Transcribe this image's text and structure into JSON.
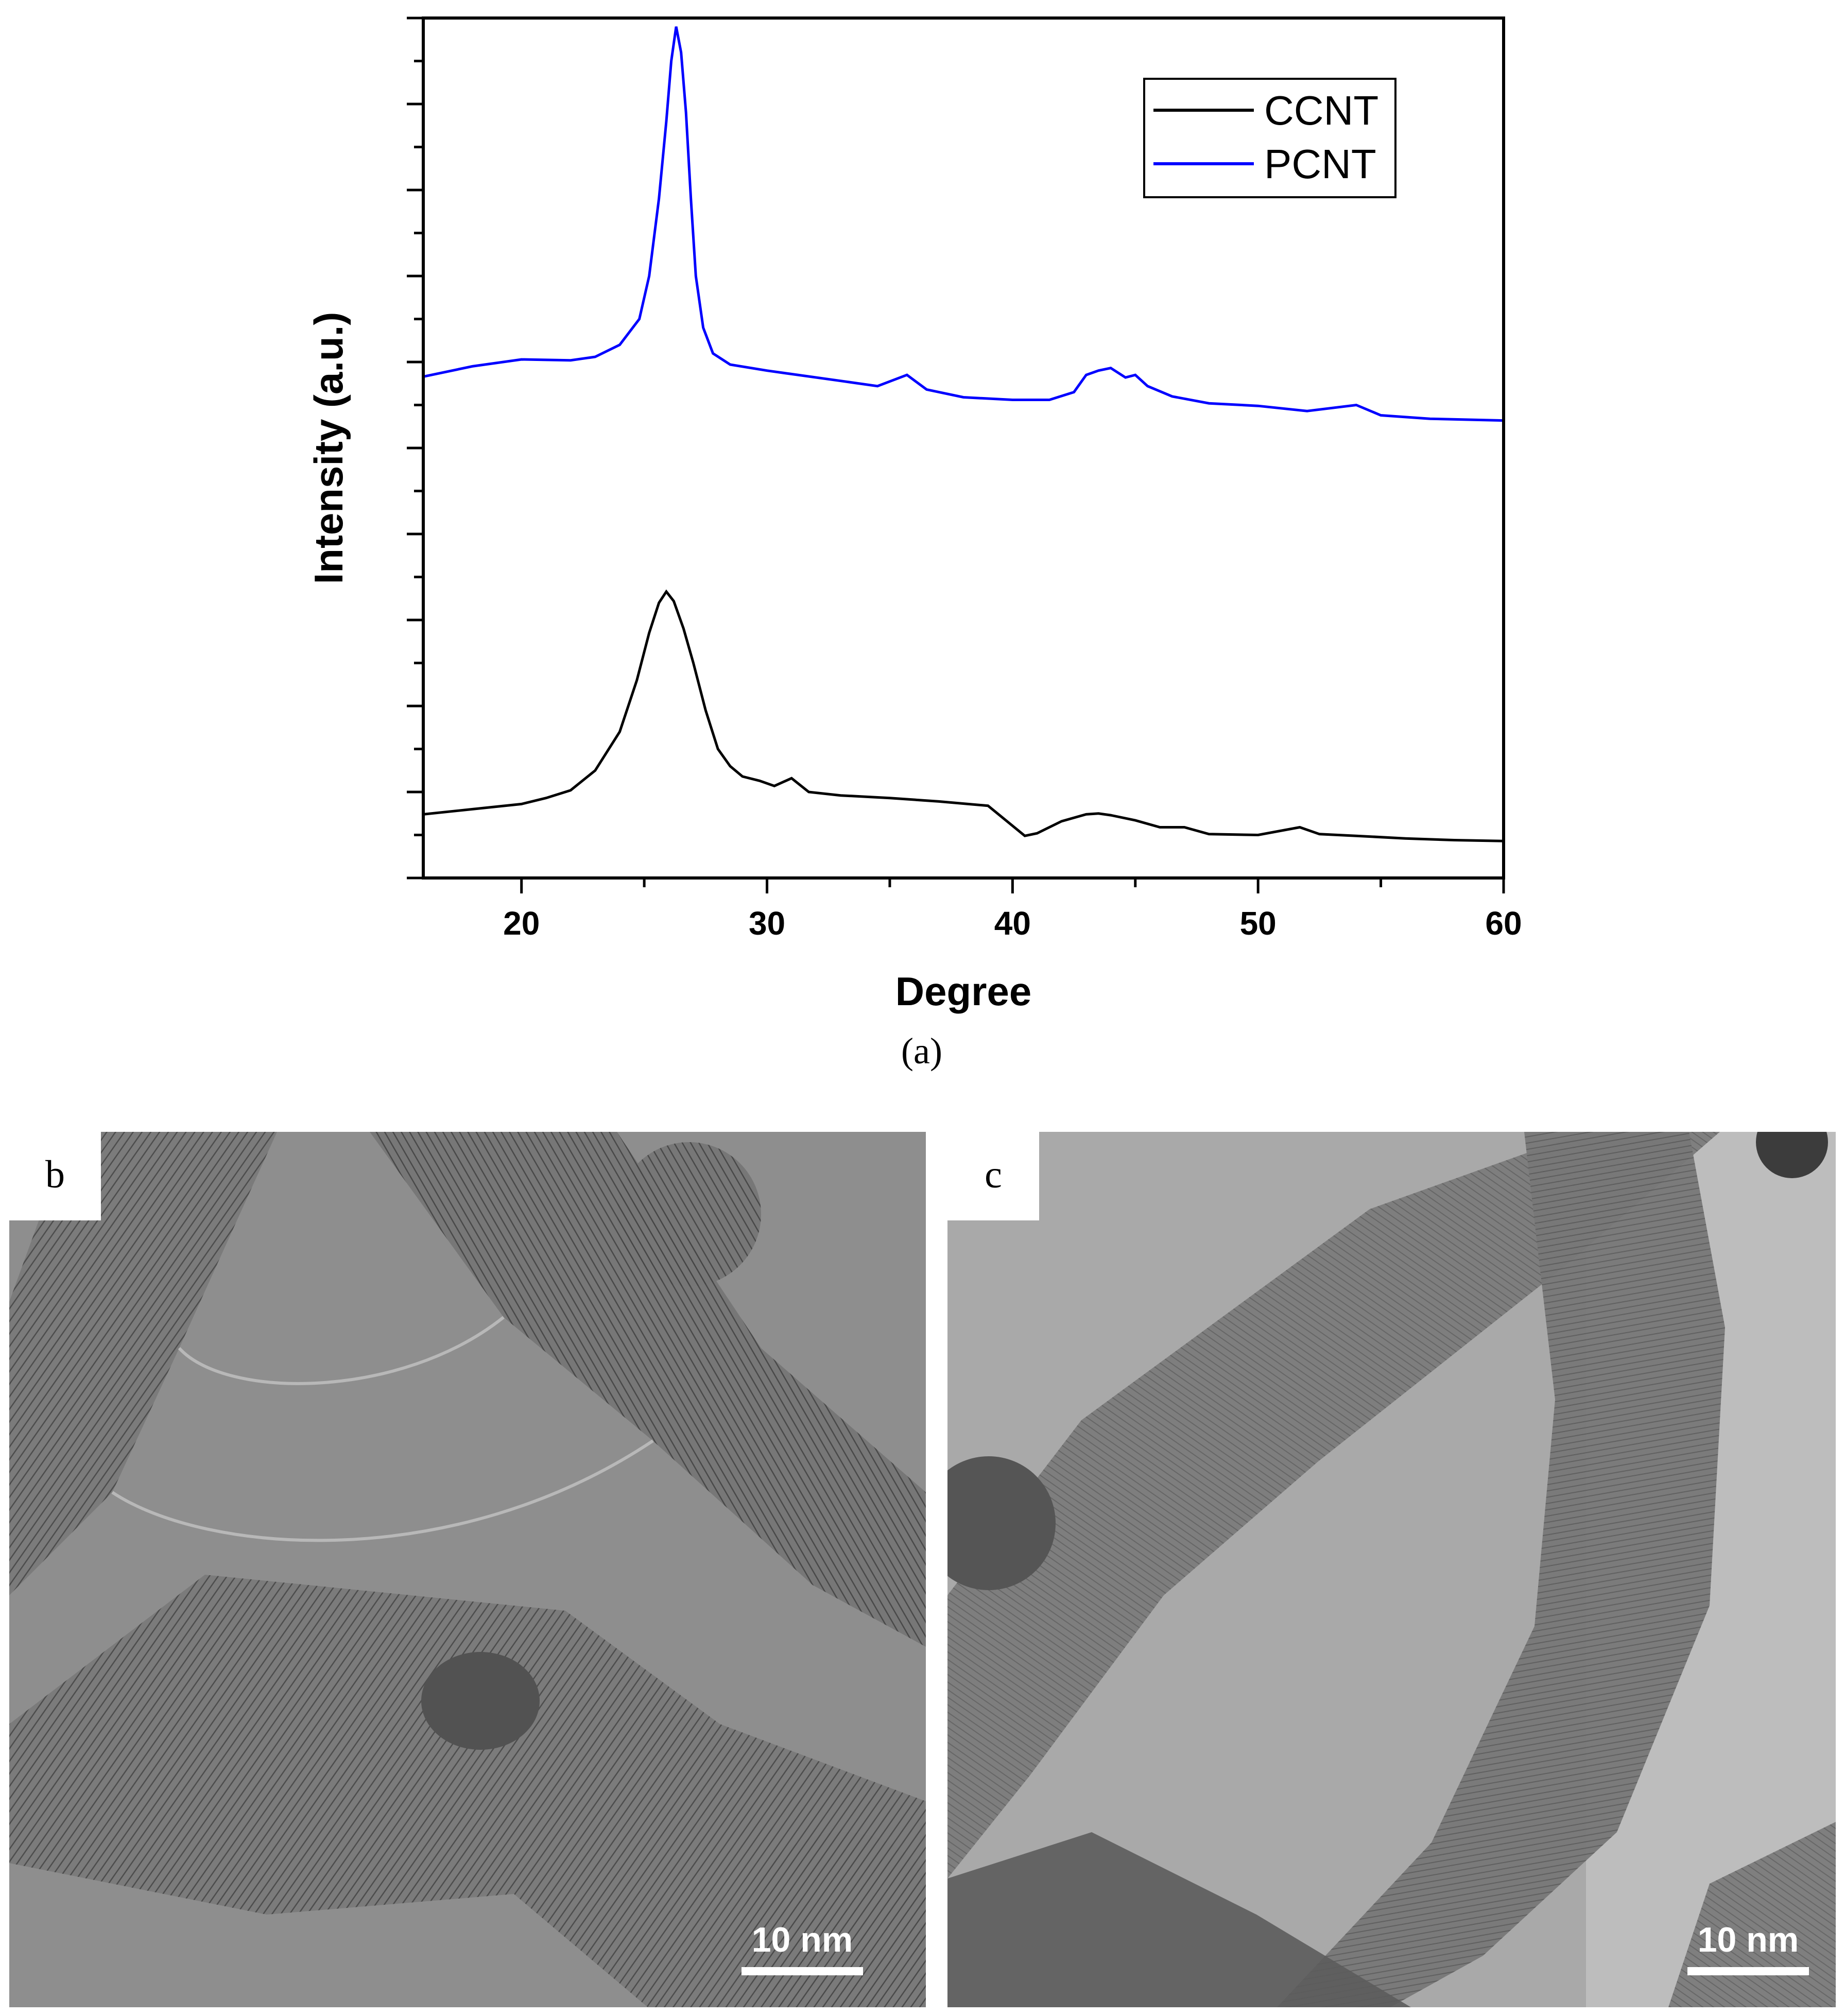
{
  "chart_data": {
    "type": "line",
    "xlabel": "Degree",
    "ylabel": "Intensity (a.u.)",
    "xlim": [
      16,
      60
    ],
    "ylim": [
      0,
      100
    ],
    "x_ticks": [
      20,
      30,
      40,
      50,
      60
    ],
    "y_ticks_labeled": false,
    "legend": {
      "placement": "top-right",
      "entries": [
        "CCNT",
        "PCNT"
      ]
    },
    "series": [
      {
        "name": "CCNT",
        "color": "#000000",
        "points": [
          [
            16,
            7.4
          ],
          [
            18,
            8.0
          ],
          [
            20,
            8.6
          ],
          [
            21,
            9.3
          ],
          [
            22,
            10.2
          ],
          [
            23,
            12.5
          ],
          [
            24,
            17
          ],
          [
            24.7,
            23
          ],
          [
            25.2,
            28.5
          ],
          [
            25.6,
            32
          ],
          [
            25.9,
            33.3
          ],
          [
            26.2,
            32.2
          ],
          [
            26.6,
            29
          ],
          [
            27,
            25
          ],
          [
            27.5,
            19.5
          ],
          [
            28,
            15
          ],
          [
            28.5,
            13
          ],
          [
            29,
            11.8
          ],
          [
            29.7,
            11.3
          ],
          [
            30.3,
            10.7
          ],
          [
            31,
            11.6
          ],
          [
            31.7,
            10
          ],
          [
            33,
            9.6
          ],
          [
            35,
            9.3
          ],
          [
            37,
            8.9
          ],
          [
            39,
            8.4
          ],
          [
            40.5,
            4.9
          ],
          [
            41,
            5.2
          ],
          [
            42,
            6.6
          ],
          [
            43,
            7.4
          ],
          [
            43.5,
            7.5
          ],
          [
            44,
            7.3
          ],
          [
            45,
            6.7
          ],
          [
            46,
            5.9
          ],
          [
            47,
            5.9
          ],
          [
            48,
            5.1
          ],
          [
            50,
            5.0
          ],
          [
            51.7,
            5.9
          ],
          [
            52.5,
            5.1
          ],
          [
            54,
            4.9
          ],
          [
            56,
            4.6
          ],
          [
            58,
            4.4
          ],
          [
            60,
            4.3
          ]
        ]
      },
      {
        "name": "PCNT",
        "color": "#0000ff",
        "points": [
          [
            16,
            58.3
          ],
          [
            18,
            59.5
          ],
          [
            20,
            60.3
          ],
          [
            22,
            60.2
          ],
          [
            23,
            60.6
          ],
          [
            24,
            62
          ],
          [
            24.8,
            65
          ],
          [
            25.2,
            70
          ],
          [
            25.6,
            79
          ],
          [
            25.9,
            88
          ],
          [
            26.1,
            95
          ],
          [
            26.3,
            99
          ],
          [
            26.5,
            96
          ],
          [
            26.7,
            89
          ],
          [
            26.9,
            79
          ],
          [
            27.1,
            70
          ],
          [
            27.4,
            64
          ],
          [
            27.8,
            61
          ],
          [
            28.5,
            59.7
          ],
          [
            30,
            59.0
          ],
          [
            31,
            58.6
          ],
          [
            33,
            57.8
          ],
          [
            34.5,
            57.2
          ],
          [
            35.7,
            58.5
          ],
          [
            36.5,
            56.8
          ],
          [
            38,
            55.9
          ],
          [
            40,
            55.6
          ],
          [
            41.5,
            55.6
          ],
          [
            42.5,
            56.5
          ],
          [
            43,
            58.5
          ],
          [
            43.5,
            59.0
          ],
          [
            44,
            59.3
          ],
          [
            44.6,
            58.2
          ],
          [
            45,
            58.5
          ],
          [
            45.5,
            57.2
          ],
          [
            46.5,
            56.0
          ],
          [
            48,
            55.2
          ],
          [
            50,
            54.9
          ],
          [
            52,
            54.3
          ],
          [
            54,
            55.0
          ],
          [
            55,
            53.8
          ],
          [
            57,
            53.4
          ],
          [
            60,
            53.2
          ]
        ]
      }
    ],
    "caption": "(a)"
  },
  "panels": {
    "b": {
      "letter": "b",
      "scale_bar_label": "10 nm"
    },
    "c": {
      "letter": "c",
      "scale_bar_label": "10 nm"
    }
  }
}
